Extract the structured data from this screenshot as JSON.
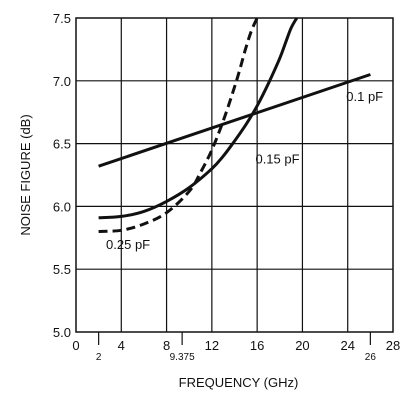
{
  "chart_data": {
    "type": "line",
    "xlabel": "FREQUENCY (GHz)",
    "ylabel": "NOISE FIGURE (dB)",
    "xlim": [
      0,
      28
    ],
    "ylim": [
      5.0,
      7.5
    ],
    "grid": true,
    "x_ticks": [
      "0",
      "4",
      "8",
      "12",
      "16",
      "20",
      "24",
      "28"
    ],
    "x_ticks_values": [
      0,
      4,
      8,
      12,
      16,
      20,
      24,
      28
    ],
    "x_minor_ticks": [
      "2",
      "9.375",
      "26"
    ],
    "x_minor_ticks_values": [
      2,
      9.375,
      26
    ],
    "y_ticks": [
      "5.0",
      "5.5",
      "6.0",
      "6.5",
      "7.0",
      "7.5"
    ],
    "y_ticks_values": [
      5.0,
      5.5,
      6.0,
      6.5,
      7.0,
      7.5
    ],
    "series": [
      {
        "label": "0.1 pF",
        "style": "solid",
        "x": [
          2,
          26
        ],
        "y": [
          6.32,
          7.05
        ]
      },
      {
        "label": "0.15 pF",
        "style": "solid",
        "x": [
          2,
          4,
          6,
          8,
          10,
          12,
          13,
          14,
          15,
          16,
          17,
          18,
          18.5,
          19,
          19.5
        ],
        "y": [
          5.91,
          5.92,
          5.96,
          6.04,
          6.15,
          6.3,
          6.4,
          6.52,
          6.65,
          6.8,
          6.98,
          7.18,
          7.3,
          7.42,
          7.5
        ]
      },
      {
        "label": "0.25 pF",
        "style": "dashed",
        "x": [
          2,
          4,
          6,
          8,
          10,
          11,
          12,
          13,
          14,
          14.5,
          15,
          15.5,
          16
        ],
        "y": [
          5.8,
          5.81,
          5.86,
          5.95,
          6.12,
          6.27,
          6.45,
          6.68,
          6.95,
          7.1,
          7.26,
          7.4,
          7.5
        ]
      }
    ],
    "annotations": [
      {
        "text": "0.1 pF",
        "x": 25.5,
        "y": 6.88
      },
      {
        "text": "0.15 pF",
        "x": 17.8,
        "y": 6.38
      },
      {
        "text": "0.25 pF",
        "x": 4.6,
        "y": 5.7
      }
    ]
  }
}
